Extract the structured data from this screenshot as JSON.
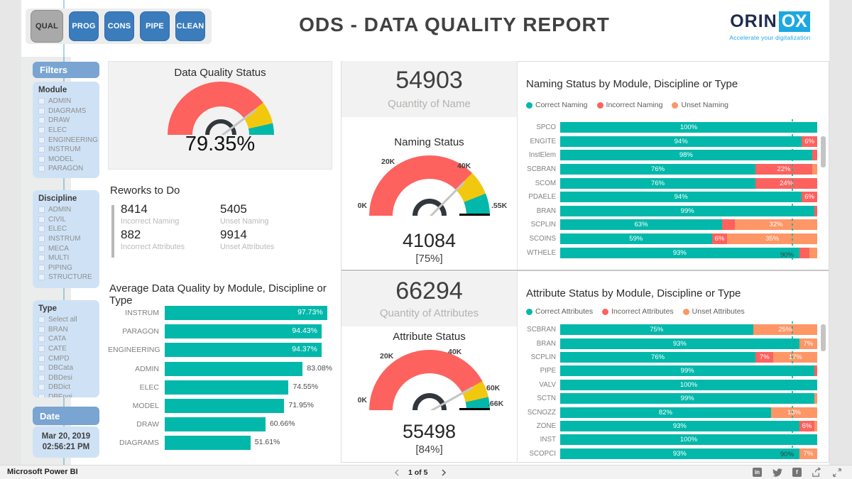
{
  "nav": {
    "buttons": [
      {
        "label": "QUAL",
        "active": true
      },
      {
        "label": "PROG",
        "active": false
      },
      {
        "label": "CONS",
        "active": false
      },
      {
        "label": "PIPE",
        "active": false
      },
      {
        "label": "CLEAN",
        "active": false
      }
    ]
  },
  "header": {
    "title": "ODS - DATA QUALITY REPORT"
  },
  "logo": {
    "text_dark": "ORIN",
    "text_boxed": "OX",
    "tagline": "Accelerate your digitalization",
    "navy": "#1E2C4D",
    "cyan": "#1CA8E2"
  },
  "filters": {
    "title": "Filters",
    "sections": [
      {
        "name": "Module",
        "items": [
          "ADMIN",
          "DIAGRAMS",
          "DRAW",
          "ELEC",
          "ENGINEERING",
          "INSTRUM",
          "MODEL",
          "PARAGON"
        ]
      },
      {
        "name": "Discipline",
        "items": [
          "ADMIN",
          "CIVIL",
          "ELEC",
          "INSTRUM",
          "MECA",
          "MULTI",
          "PIPING",
          "STRUCTURE"
        ]
      },
      {
        "name": "Type",
        "items": [
          "Select all",
          "BRAN",
          "CATA",
          "CATE",
          "CMPD",
          "DBCata",
          "DBDesi",
          "DBDict",
          "DBEngi"
        ]
      }
    ],
    "date": {
      "title": "Date",
      "value_line1": "Mar 20, 2019",
      "value_line2": "02:56:21 PM"
    }
  },
  "colors": {
    "teal": "#01B8AA",
    "red": "#FD625E",
    "yellow": "#F2C80F",
    "orange": "#FE9666"
  },
  "quality_gauge": {
    "title": "Data Quality Status",
    "value_label": "79.35%",
    "needle_percent": 79.35,
    "segments": {
      "red_end": 79.35,
      "yellow_end": 93
    }
  },
  "reworks": {
    "title": "Reworks to Do",
    "items": [
      {
        "value": "8414",
        "label": "Incorrect Naming"
      },
      {
        "value": "5405",
        "label": "Unset Naming"
      },
      {
        "value": "882",
        "label": "Incorrect Attributes"
      },
      {
        "value": "9914",
        "label": "Unset Attributes"
      }
    ]
  },
  "avg_chart": {
    "type": "bar",
    "title": "Average Data Quality by Module, Discipline or Type",
    "categories": [
      "INSTRUM",
      "PARAGON",
      "ENGINEERING",
      "ADMIN",
      "ELEC",
      "MODEL",
      "DRAW",
      "DIAGRAMS"
    ],
    "values": [
      97.73,
      94.43,
      94.37,
      83.08,
      74.55,
      71.95,
      60.66,
      51.61
    ],
    "value_labels": [
      "97.73%",
      "94.43%",
      "94.37%",
      "83.08%",
      "74.55%",
      "71.95%",
      "60.66%",
      "51.61%"
    ],
    "xlim": [
      0,
      100
    ]
  },
  "naming_panel": {
    "big_value": "54903",
    "big_label": "Quantity of Name",
    "gauge_title": "Naming Status",
    "ticks": [
      "0K",
      "20K",
      "40K",
      ".55K"
    ],
    "value": "41084",
    "percent_label": "[75%]",
    "needle_percent": 74.8,
    "segments": {
      "red_end": 75,
      "yellow_end": 88
    }
  },
  "attr_panel": {
    "big_value": "66294",
    "big_label": "Quantity of Attributes",
    "gauge_title": "Attribute Status",
    "ticks": [
      "0K",
      "20K",
      "40K",
      "60K",
      ".66K"
    ],
    "value": "55498",
    "percent_label": "[84%]",
    "needle_percent": 83.7,
    "segments": {
      "red_end": 84,
      "yellow_end": 93
    }
  },
  "naming_chart": {
    "type": "bar",
    "title": "Naming Status by Module, Discipline or Type",
    "legend": [
      "Correct Naming",
      "Incorrect Naming",
      "Unset Naming"
    ],
    "ref_line": {
      "value": 90,
      "label": "90%"
    },
    "rows": [
      {
        "label": "SPCO",
        "correct": 100,
        "incorrect": 0,
        "unset": 0
      },
      {
        "label": "ENGITE",
        "correct": 94,
        "incorrect": 6,
        "unset": 0
      },
      {
        "label": "InstElem",
        "correct": 98,
        "incorrect": 2,
        "unset": 0
      },
      {
        "label": "SCBRAN",
        "correct": 76,
        "incorrect": 22,
        "unset": 2
      },
      {
        "label": "SCOM",
        "correct": 76,
        "incorrect": 24,
        "unset": 0
      },
      {
        "label": "PDAELE",
        "correct": 94,
        "incorrect": 6,
        "unset": 0
      },
      {
        "label": "BRAN",
        "correct": 99,
        "incorrect": 1,
        "unset": 0
      },
      {
        "label": "SCPLIN",
        "correct": 63,
        "incorrect": 5,
        "unset": 32
      },
      {
        "label": "SCOINS",
        "correct": 59,
        "incorrect": 6,
        "unset": 35
      },
      {
        "label": "WTHELE",
        "correct": 93,
        "incorrect": 4,
        "unset": 3
      }
    ]
  },
  "attr_chart": {
    "type": "bar",
    "title": "Attribute Status by Module, Discipline or Type",
    "legend": [
      "Correct Attributes",
      "Incorrect Attributes",
      "Unset Attributes"
    ],
    "ref_line": {
      "value": 90,
      "label": "90%"
    },
    "rows": [
      {
        "label": "SCBRAN",
        "correct": 75,
        "incorrect": 0,
        "unset": 25
      },
      {
        "label": "BRAN",
        "correct": 93,
        "incorrect": 0,
        "unset": 7
      },
      {
        "label": "SCPLIN",
        "correct": 76,
        "incorrect": 7,
        "unset": 17
      },
      {
        "label": "PIPE",
        "correct": 99,
        "incorrect": 1,
        "unset": 0
      },
      {
        "label": "VALV",
        "correct": 100,
        "incorrect": 0,
        "unset": 0
      },
      {
        "label": "SCTN",
        "correct": 99,
        "incorrect": 0,
        "unset": 1
      },
      {
        "label": "SCNOZZ",
        "correct": 82,
        "incorrect": 0,
        "unset": 18
      },
      {
        "label": "ZONE",
        "correct": 93,
        "incorrect": 6,
        "unset": 1
      },
      {
        "label": "INST",
        "correct": 100,
        "incorrect": 0,
        "unset": 0
      },
      {
        "label": "SCOPCI",
        "correct": 93,
        "incorrect": 0,
        "unset": 7
      }
    ]
  },
  "footer": {
    "left": "Microsoft Power BI",
    "page": "1 of 5",
    "icons": [
      "linkedin",
      "twitter",
      "facebook",
      "share",
      "fit-to-screen"
    ]
  }
}
